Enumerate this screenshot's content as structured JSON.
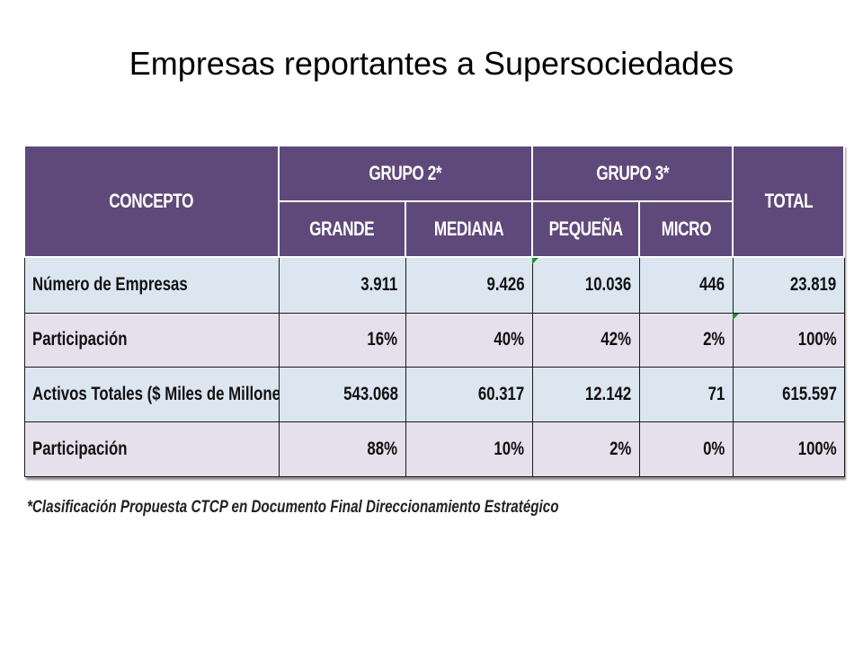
{
  "title": "Empresas reportantes a Supersociedades",
  "table": {
    "header": {
      "concepto": "CONCEPTO",
      "grupo2": "GRUPO 2*",
      "grupo3": "GRUPO 3*",
      "total": "TOTAL",
      "grande": "GRANDE",
      "mediana": "MEDIANA",
      "pequena": "PEQUEÑA",
      "micro": "MICRO"
    },
    "rows": [
      {
        "label": "Número de Empresas",
        "grande": "3.911",
        "mediana": "9.426",
        "pequena": "10.036",
        "micro": "446",
        "total": "23.819"
      },
      {
        "label": "Participación",
        "grande": "16%",
        "mediana": "40%",
        "pequena": "42%",
        "micro": "2%",
        "total": "100%"
      },
      {
        "label": "Activos Totales ($ Miles de Millones)",
        "grande": "543.068",
        "mediana": "60.317",
        "pequena": "12.142",
        "micro": "71",
        "total": "615.597"
      },
      {
        "label": "Participación",
        "grande": "88%",
        "mediana": "10%",
        "pequena": "2%",
        "micro": "0%",
        "total": "100%"
      }
    ],
    "colors": {
      "header_bg": "#5f497a",
      "row_blue": "#dce6f1",
      "row_pink": "#e6e0ec"
    }
  },
  "footnote": "*Clasificación Propuesta CTCP en Documento Final Direccionamiento Estratégico"
}
